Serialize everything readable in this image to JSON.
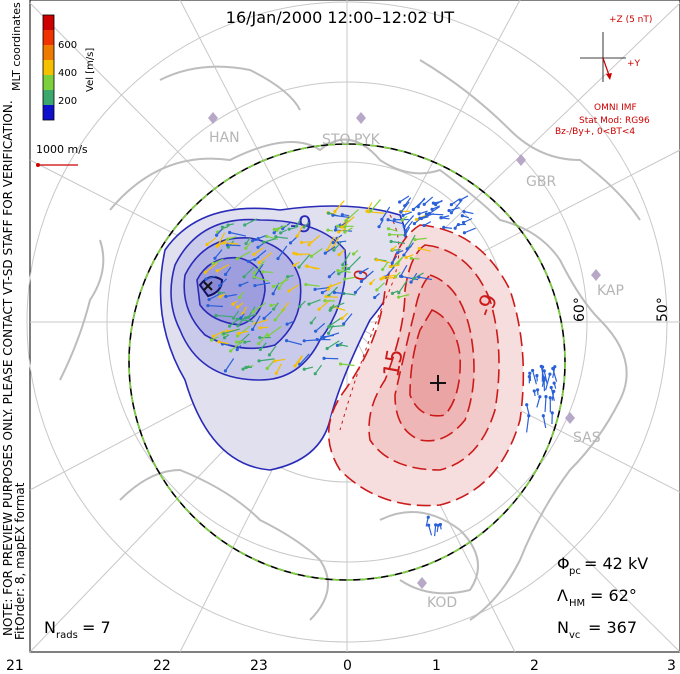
{
  "title": "16/Jan/2000 12:00–12:02 UT",
  "colorbar": {
    "ticks": [
      "600",
      "400",
      "200"
    ],
    "label": "Vel [m/s]",
    "colors": [
      "#cc0000",
      "#ee5a00",
      "#f5a800",
      "#7bd03c",
      "#3da86e",
      "#2a60d8",
      "#1010cc"
    ]
  },
  "coord_label": "MLT coordinates",
  "velocity_scale": "1000 m/s",
  "side_note": "NOTE: FOR PREVIEW PURPOSES ONLY. PLEASE CONTACT VT-SD STAFF FOR VERIFICATION.",
  "fit_order": "FitOrder: 8, mapEX format",
  "imf": {
    "z_label": "+Z (5 nT)",
    "y_label": "+Y",
    "source": "OMNI IMF",
    "stat_mod": "Stat Mod: RG96",
    "condition": "Bz-/By+, 0<BT<4"
  },
  "stations": [
    "HAN",
    "STO",
    "PYK",
    "GBR",
    "KAP",
    "SAS",
    "KOD"
  ],
  "latitude_labels": [
    "60°",
    "50°"
  ],
  "contour_labels": [
    "-9",
    "-9",
    "15",
    "0"
  ],
  "potential": {
    "phi_pc": "Φ",
    "phi_sub": "pc",
    "phi_value": "= 42 kV"
  },
  "hm_boundary": {
    "lam": "Λ",
    "sub": "HM",
    "value": "= 62°"
  },
  "nvc": {
    "n": "N",
    "sub": "vc",
    "value": "= 367"
  },
  "nrads": {
    "n": "N",
    "sub": "rads",
    "value": "= 7"
  },
  "mlt_axis": [
    "21",
    "22",
    "23",
    "0",
    "1",
    "2",
    "3"
  ],
  "colors": {
    "negative": "#2a2ab8",
    "positive": "#cc1a1a",
    "boundary": "#7bd03c"
  }
}
